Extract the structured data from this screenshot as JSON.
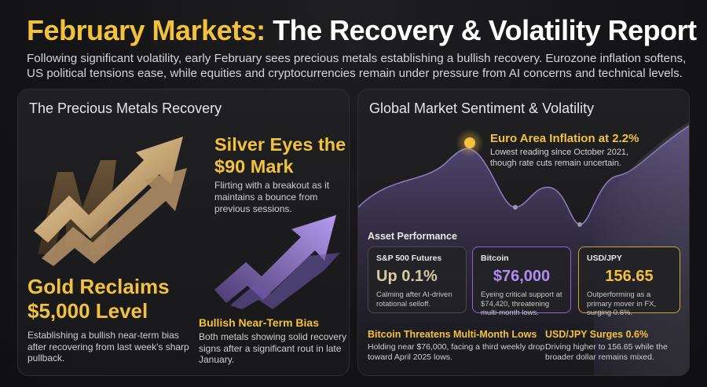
{
  "header": {
    "title_highlight": "February Markets:",
    "title_rest": " The Recovery & Volatility Report",
    "subtitle": "Following significant volatility, early February sees precious metals establishing a bullish recovery. Eurozone inflation softens, US political tensions ease, while equities and cryptocurrencies remain under pressure from AI concerns and technical levels."
  },
  "metals": {
    "panel_title": "The Precious Metals Recovery",
    "silver": {
      "title": "Silver Eyes the $90 Mark",
      "desc": "Flirting with a breakout as it maintains a bounce from previous sessions."
    },
    "gold": {
      "title": "Gold Reclaims $5,000 Level",
      "desc": "Establishing a bullish near-term bias after recovering from last week's sharp pullback."
    },
    "bias": {
      "title": "Bullish Near-Term Bias",
      "desc": "Both metals showing solid recovery signs after a significant rout in late January."
    }
  },
  "sentiment": {
    "panel_title": "Global Market Sentiment & Volatility",
    "euro": {
      "title": "Euro Area Inflation at 2.2%",
      "desc": "Lowest reading since October 2021, though rate cuts remain uncertain."
    },
    "asset_title": "Asset Performance",
    "cards": {
      "sp": {
        "label": "S&P 500 Futures",
        "value": "Up 0.1%",
        "desc": "Calming after AI-driven rotational selloff."
      },
      "btc": {
        "label": "Bitcoin",
        "value": "$76,000",
        "desc": "Eyeing critical support at $74,420, threatening multi-month lows."
      },
      "jpy": {
        "label": "USD/JPY",
        "value": "156.65",
        "desc": "Outperforming as a primary mover in FX, surging 0.6%."
      }
    },
    "news": {
      "btc": {
        "title": "Bitcoin Threatens Multi-Month Lows",
        "desc": "Holding near $76,000, facing a third weekly drop toward April 2025 lows."
      },
      "jpy": {
        "title": "USD/JPY Surges 0.6%",
        "desc": "Driving higher to 156.65 while the broader dollar remains mixed."
      }
    }
  },
  "colors": {
    "gold_accent": "#f2c23d",
    "purple_accent": "#8a67d6",
    "background": "#141416"
  },
  "icons": {
    "gold_art": "gold-rising-arrows-icon",
    "silver_art": "purple-rising-arrow-icon",
    "wave_highlight": "glowing-dot-icon"
  }
}
